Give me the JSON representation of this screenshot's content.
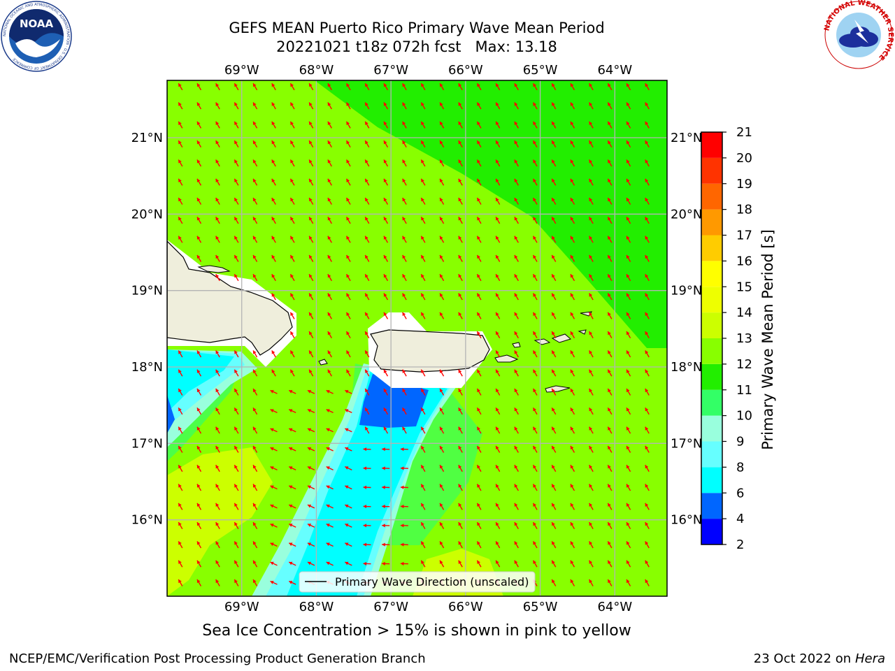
{
  "title": {
    "line1": "GEFS MEAN Puerto Rico Primary Wave Mean Period",
    "run": "20221021 t18z 072h fcst",
    "max_label": "Max: 13.18"
  },
  "map": {
    "lon_labels": [
      "69°W",
      "68°W",
      "67°W",
      "66°W",
      "65°W",
      "64°W"
    ],
    "lat_labels": [
      "21°N",
      "20°N",
      "19°N",
      "18°N",
      "17°N",
      "16°N"
    ],
    "lon_values": [
      -69,
      -68,
      -67,
      -66,
      -65,
      -64
    ],
    "lat_values": [
      21,
      20,
      19,
      18,
      17,
      16
    ],
    "extent": {
      "lon_min": -70,
      "lon_max": -63.3,
      "lat_min": 15,
      "lat_max": 21.75
    },
    "arrow_color": "#ff0000",
    "legend_label": "Primary Wave Direction (unscaled)"
  },
  "colorbar": {
    "label": "Primary Wave Mean Period [s]",
    "ticks": [
      "21",
      "20",
      "19",
      "18",
      "17",
      "16",
      "15",
      "14",
      "13",
      "12",
      "11",
      "10",
      "9",
      "8",
      "6",
      "4",
      "2"
    ],
    "bands": [
      {
        "from": 2,
        "to": 4,
        "color": "#0000ff"
      },
      {
        "from": 4,
        "to": 6,
        "color": "#0066ff"
      },
      {
        "from": 6,
        "to": 8,
        "color": "#00ffff"
      },
      {
        "from": 8,
        "to": 9,
        "color": "#66ffff"
      },
      {
        "from": 9,
        "to": 10,
        "color": "#99ffdd"
      },
      {
        "from": 10,
        "to": 11,
        "color": "#33ff66"
      },
      {
        "from": 11,
        "to": 12,
        "color": "#22ee00"
      },
      {
        "from": 12,
        "to": 13,
        "color": "#88ff00"
      },
      {
        "from": 13,
        "to": 14,
        "color": "#ccff00"
      },
      {
        "from": 14,
        "to": 15,
        "color": "#eeff00"
      },
      {
        "from": 15,
        "to": 16,
        "color": "#ffff00"
      },
      {
        "from": 16,
        "to": 17,
        "color": "#ffcc00"
      },
      {
        "from": 17,
        "to": 18,
        "color": "#ff9900"
      },
      {
        "from": 18,
        "to": 19,
        "color": "#ff6600"
      },
      {
        "from": 19,
        "to": 20,
        "color": "#ff3300"
      },
      {
        "from": 20,
        "to": 21,
        "color": "#ff0000"
      }
    ]
  },
  "notes": {
    "ice": "Sea Ice Concentration > 15% is shown in pink to yellow",
    "footer_left": "NCEP/EMC/Verification Post Processing Product Generation Branch",
    "footer_date": "23 Oct 2022 on",
    "footer_host": "Hera"
  },
  "logos": {
    "noaa_text": "NOAA",
    "noaa_ring": "NATIONAL OCEANIC AND ATMOSPHERIC ADMINISTRATION · U.S. DEPARTMENT OF COMMERCE",
    "nws_ring": "NATIONAL WEATHER SERVICE"
  },
  "icons": [
    "noaa-logo-icon",
    "nws-logo-icon"
  ]
}
